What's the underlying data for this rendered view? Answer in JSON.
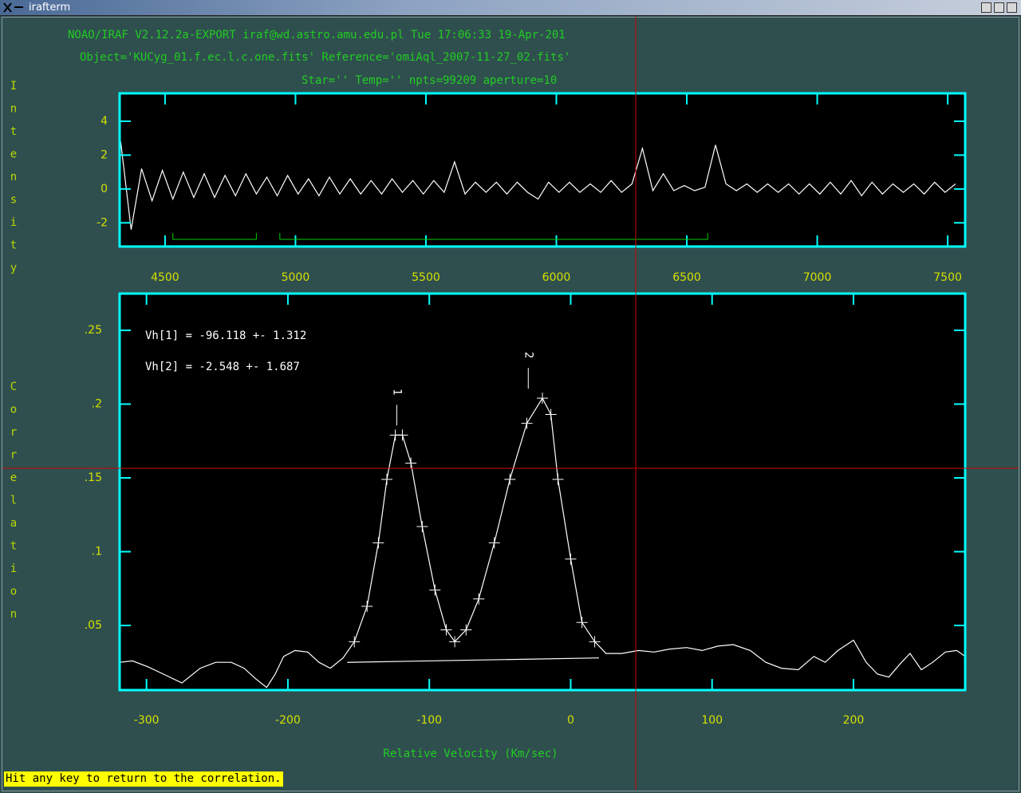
{
  "window": {
    "title": "irafterm"
  },
  "header": [
    "NOAO/IRAF V2.12.2a-EXPORT iraf@wd.astro.amu.edu.pl Tue 17:06:33 19-Apr-201",
    "Object='KUCyg_01.f.ec.l.c.one.fits' Reference='omiAql_2007-11-27_02.fits'",
    "Star='' Temp='' npts=99209 aperture=10"
  ],
  "chart_data": [
    {
      "type": "line",
      "y_label": "Intensity",
      "color": "#ffffff",
      "x": [
        4330,
        4370,
        4410,
        4450,
        4490,
        4530,
        4570,
        4610,
        4650,
        4690,
        4730,
        4770,
        4810,
        4850,
        4890,
        4930,
        4970,
        5010,
        5050,
        5090,
        5130,
        5170,
        5210,
        5250,
        5290,
        5330,
        5370,
        5410,
        5450,
        5490,
        5530,
        5570,
        5610,
        5650,
        5690,
        5730,
        5770,
        5810,
        5850,
        5890,
        5930,
        5970,
        6010,
        6050,
        6090,
        6130,
        6170,
        6210,
        6250,
        6290,
        6330,
        6370,
        6410,
        6450,
        6490,
        6530,
        6570,
        6610,
        6650,
        6690,
        6730,
        6770,
        6810,
        6850,
        6890,
        6930,
        6970,
        7010,
        7050,
        7090,
        7130,
        7170,
        7210,
        7250,
        7290,
        7330,
        7370,
        7410,
        7450,
        7490,
        7530
      ],
      "values": [
        2.8,
        -2.4,
        1.2,
        -0.7,
        1.1,
        -0.6,
        1.0,
        -0.5,
        0.9,
        -0.5,
        0.8,
        -0.4,
        0.9,
        -0.3,
        0.7,
        -0.4,
        0.8,
        -0.3,
        0.6,
        -0.4,
        0.7,
        -0.3,
        0.6,
        -0.3,
        0.5,
        -0.3,
        0.6,
        -0.2,
        0.5,
        -0.3,
        0.5,
        -0.2,
        1.6,
        -0.3,
        0.4,
        -0.2,
        0.4,
        -0.3,
        0.4,
        -0.2,
        -0.6,
        0.4,
        -0.2,
        0.4,
        -0.2,
        0.3,
        -0.2,
        0.5,
        -0.2,
        0.3,
        2.4,
        -0.1,
        0.9,
        -0.1,
        0.2,
        -0.1,
        0.1,
        2.6,
        0.3,
        -0.1,
        0.3,
        -0.2,
        0.3,
        -0.2,
        0.3,
        -0.3,
        0.3,
        -0.3,
        0.4,
        -0.3,
        0.5,
        -0.4,
        0.4,
        -0.3,
        0.3,
        -0.2,
        0.3,
        -0.3,
        0.4,
        -0.2,
        0.3
      ],
      "xlim": [
        4326,
        7567
      ],
      "ylim": [
        -3.4,
        5.65
      ],
      "xticks": [
        4500,
        5000,
        5500,
        6000,
        6500,
        7000,
        7500
      ],
      "yticks": [
        -2,
        0,
        2,
        4
      ],
      "regions": [
        [
          4530,
          4850
        ],
        [
          4940,
          6580
        ]
      ],
      "region_color": "#00cc00"
    },
    {
      "type": "line",
      "y_label": "Correlation",
      "x_label": "Relative Velocity (Km/sec)",
      "color": "#ffffff",
      "x": [
        -319,
        -310,
        -299,
        -288,
        -275,
        -262,
        -251,
        -240,
        -231,
        -223,
        -215,
        -209,
        -203,
        -195,
        -186,
        -178,
        -170,
        -161,
        -153,
        -144,
        -136,
        -130,
        -124,
        -119,
        -113,
        -105,
        -96,
        -88,
        -82,
        -74,
        -65,
        -54,
        -43,
        -31,
        -20,
        -14,
        -9,
        0,
        8,
        17,
        25,
        36,
        48,
        59,
        70,
        82,
        93,
        104,
        115,
        127,
        138,
        149,
        161,
        172,
        180,
        189,
        200,
        209,
        217,
        225,
        234,
        240,
        248,
        256,
        265,
        273,
        279
      ],
      "values": [
        0.025,
        0.026,
        0.022,
        0.017,
        0.011,
        0.021,
        0.025,
        0.025,
        0.021,
        0.014,
        0.008,
        0.017,
        0.029,
        0.033,
        0.032,
        0.025,
        0.021,
        0.028,
        0.039,
        0.063,
        0.106,
        0.149,
        0.179,
        0.179,
        0.16,
        0.117,
        0.074,
        0.047,
        0.039,
        0.047,
        0.068,
        0.106,
        0.149,
        0.187,
        0.204,
        0.193,
        0.149,
        0.095,
        0.052,
        0.039,
        0.031,
        0.031,
        0.033,
        0.032,
        0.034,
        0.035,
        0.033,
        0.036,
        0.037,
        0.033,
        0.025,
        0.021,
        0.02,
        0.029,
        0.025,
        0.033,
        0.04,
        0.025,
        0.017,
        0.015,
        0.025,
        0.031,
        0.02,
        0.025,
        0.032,
        0.033,
        0.029
      ],
      "xlim": [
        -319,
        279
      ],
      "ylim": [
        0.0062,
        0.2749
      ],
      "xticks": [
        -300,
        -200,
        -100,
        0,
        100,
        200
      ],
      "yticks": [
        {
          "value": 0.05,
          "label": ".05"
        },
        {
          "value": 0.1,
          "label": ".1"
        },
        {
          "value": 0.15,
          "label": ".15"
        },
        {
          "value": 0.2,
          "label": ".2"
        },
        {
          "value": 0.25,
          "label": ".25"
        }
      ],
      "fit_region": [
        -158,
        20
      ],
      "baseline": {
        "x": [
          -158,
          20
        ],
        "values": [
          0.025,
          0.028
        ]
      },
      "annotations": [
        "Vh[1] = -96.118 +- 1.312",
        "Vh[2] = -2.548 +- 1.687"
      ],
      "peaks": [
        {
          "label": "1",
          "x": -123
        },
        {
          "label": "2",
          "x": -30
        }
      ]
    }
  ],
  "status": "Hit any key to return to the correlation."
}
